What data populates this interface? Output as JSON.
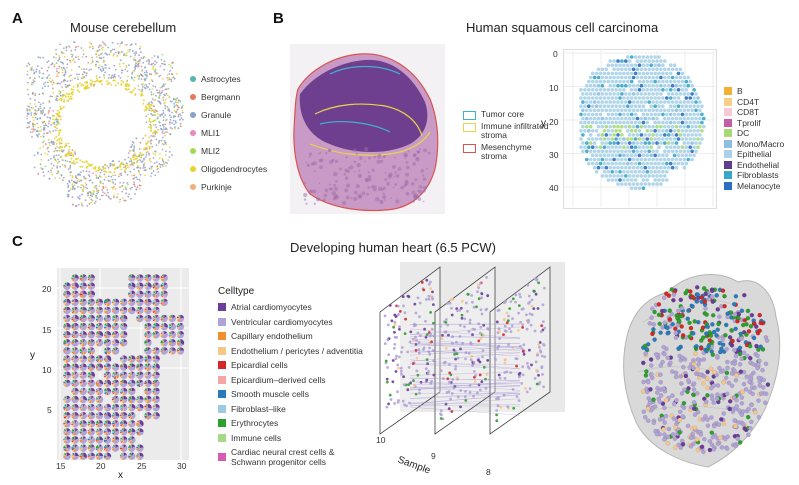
{
  "panels": {
    "a": {
      "letter": "A",
      "title": "Mouse cerebellum",
      "legend": [
        {
          "label": "Astrocytes",
          "color": "#5ab4ac"
        },
        {
          "label": "Bergmann",
          "color": "#e9765b"
        },
        {
          "label": "Granule",
          "color": "#8da0cb"
        },
        {
          "label": "MLI1",
          "color": "#e78ac3"
        },
        {
          "label": "MLI2",
          "color": "#a6d854"
        },
        {
          "label": "Oligodendrocytes",
          "color": "#e5d437"
        },
        {
          "label": "Purkinje",
          "color": "#f0b27a"
        }
      ]
    },
    "b": {
      "letter": "B",
      "title": "Human squamous cell carcinoma",
      "region_legend": [
        {
          "label": "Tumor core",
          "color": "#3fb3c9"
        },
        {
          "label": "Immune infiltrated\nstroma",
          "color": "#e6d44a"
        },
        {
          "label": "Mesenchyme\nstroma",
          "color": "#d9534f"
        }
      ],
      "plot": {
        "ylabel": "y",
        "yticks": [
          "0",
          "10",
          "20",
          "30",
          "40"
        ]
      },
      "legend": [
        {
          "label": "B",
          "color": "#f2b134"
        },
        {
          "label": "CD4T",
          "color": "#f6d08a"
        },
        {
          "label": "CD8T",
          "color": "#f7c9d6"
        },
        {
          "label": "Tprolif",
          "color": "#c25ea8"
        },
        {
          "label": "DC",
          "color": "#a9d977"
        },
        {
          "label": "Mono/Macro",
          "color": "#8fbfe0"
        },
        {
          "label": "Epithelial",
          "color": "#a9d1e8"
        },
        {
          "label": "Endothelial",
          "color": "#5c3f8f"
        },
        {
          "label": "Fibroblasts",
          "color": "#3aa6c9"
        },
        {
          "label": "Melanocyte",
          "color": "#2b6fc2"
        }
      ]
    },
    "c": {
      "letter": "C",
      "title": "Developing human heart (6.5 PCW)",
      "plot": {
        "xlabel": "x",
        "ylabel": "y",
        "xticks": [
          "15",
          "20",
          "25",
          "30"
        ],
        "yticks": [
          "5",
          "10",
          "15",
          "20"
        ]
      },
      "legend_title": "Celltype",
      "legend": [
        {
          "label": "Atrial cardiomyocytes",
          "color": "#6a3d9a"
        },
        {
          "label": "Ventricular cardiomyocytes",
          "color": "#b2a3d6"
        },
        {
          "label": "Capillary endothelium",
          "color": "#f28e2b"
        },
        {
          "label": "Endothelium / pericytes / adventitia",
          "color": "#f7c78a"
        },
        {
          "label": "Epicardial cells",
          "color": "#d62728"
        },
        {
          "label": "Epicardium–derived cells",
          "color": "#f4a6a6"
        },
        {
          "label": "Smooth muscle cells",
          "color": "#2b7bba"
        },
        {
          "label": "Fibroblast–like",
          "color": "#9ecae1"
        },
        {
          "label": "Erythrocytes",
          "color": "#2ca02c"
        },
        {
          "label": "Immune cells",
          "color": "#a6d98a"
        },
        {
          "label": "Cardiac neural crest cells &\nSchwann progenitor cells",
          "color": "#d45ab4"
        }
      ],
      "stack": {
        "sample_label": "Sample",
        "samples": [
          "10",
          "9",
          "8"
        ]
      }
    }
  }
}
